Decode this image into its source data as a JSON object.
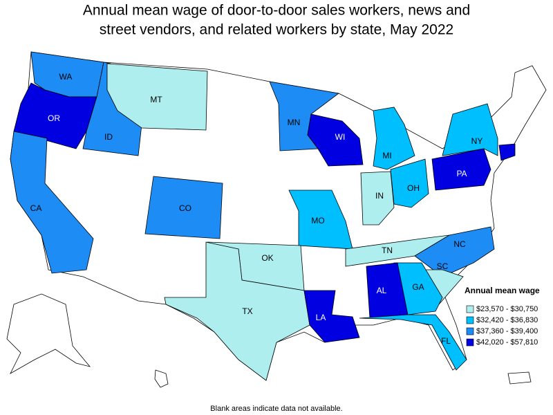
{
  "title": [
    "Annual mean wage of door-to-door sales workers, news and",
    "street vendors, and related workers by state, May 2022"
  ],
  "legend": {
    "title": "Annual mean wage",
    "items": [
      {
        "label": "$23,570 - $30,750",
        "color": "#aeeeee"
      },
      {
        "label": "$32,420 - $36,830",
        "color": "#00bfff"
      },
      {
        "label": "$37,360 - $39,400",
        "color": "#1e8cf5"
      },
      {
        "label": "$42,020 - $57,810",
        "color": "#0000e0"
      }
    ]
  },
  "states": [
    {
      "abbr": "WA",
      "bin": 2
    },
    {
      "abbr": "OR",
      "bin": 3
    },
    {
      "abbr": "ID",
      "bin": 2
    },
    {
      "abbr": "MT",
      "bin": 0
    },
    {
      "abbr": "CA",
      "bin": 2
    },
    {
      "abbr": "CO",
      "bin": 2
    },
    {
      "abbr": "MN",
      "bin": 2
    },
    {
      "abbr": "WI",
      "bin": 3
    },
    {
      "abbr": "MI",
      "bin": 1
    },
    {
      "abbr": "NY",
      "bin": 1
    },
    {
      "abbr": "PA",
      "bin": 3
    },
    {
      "abbr": "CT",
      "bin": 3
    },
    {
      "abbr": "OH",
      "bin": 1
    },
    {
      "abbr": "IN",
      "bin": 0
    },
    {
      "abbr": "MO",
      "bin": 1
    },
    {
      "abbr": "OK",
      "bin": 0
    },
    {
      "abbr": "TX",
      "bin": 0
    },
    {
      "abbr": "TN",
      "bin": 0
    },
    {
      "abbr": "NC",
      "bin": 2
    },
    {
      "abbr": "SC",
      "bin": 0
    },
    {
      "abbr": "GA",
      "bin": 1
    },
    {
      "abbr": "AL",
      "bin": 3
    },
    {
      "abbr": "FL",
      "bin": 1
    },
    {
      "abbr": "LA",
      "bin": 3
    }
  ],
  "note": "Blank areas indicate data not available."
}
